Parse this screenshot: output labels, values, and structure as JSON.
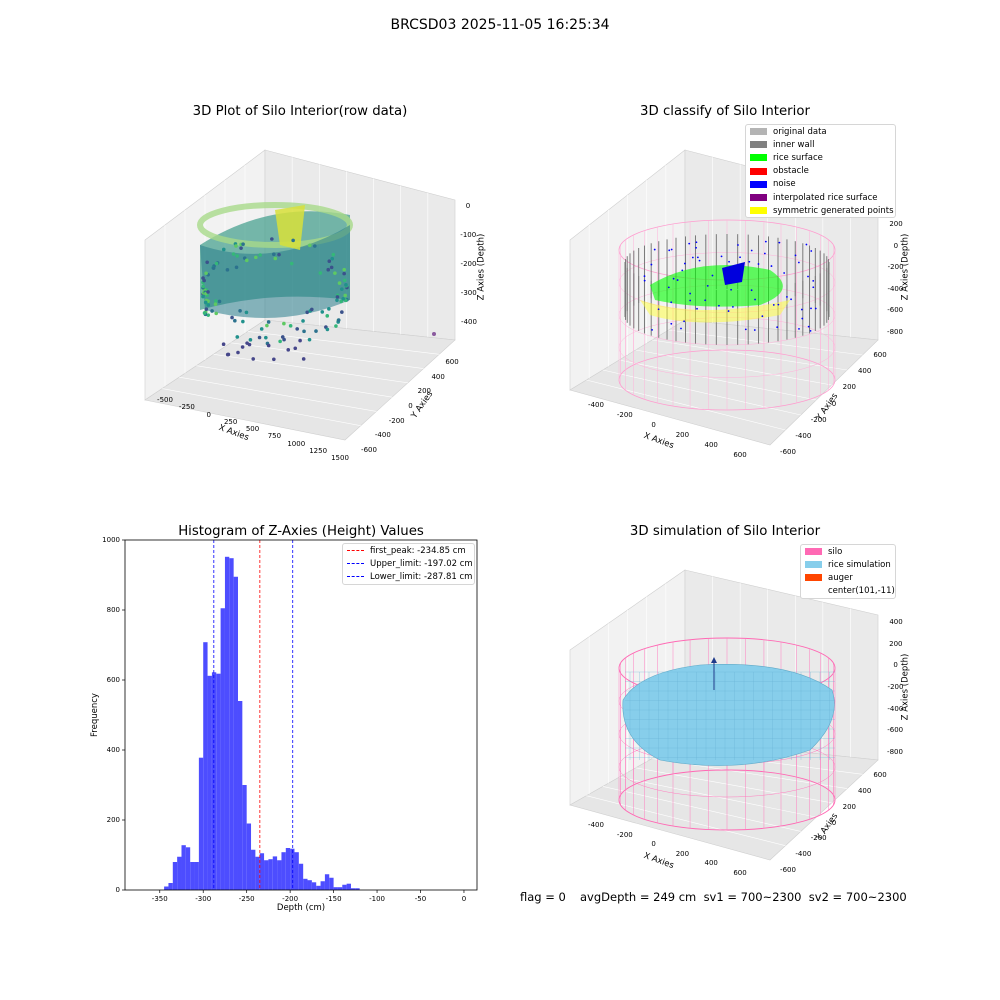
{
  "figure_title": "BRCSD03 2025-11-05 16:25:34",
  "panel1": {
    "title": "3D Plot of Silo Interior(row data)",
    "xlabel": "X Axies",
    "ylabel": "Y Axies",
    "zlabel": "Z Axies (Depth)",
    "xticks": [
      "-500",
      "-250",
      "0",
      "250",
      "500",
      "750",
      "1000",
      "1250",
      "1500"
    ],
    "yticks": [
      "600",
      "400",
      "200",
      "0",
      "-200",
      "-400",
      "-600"
    ],
    "zticks": [
      "0",
      "-100",
      "-200",
      "-300",
      "-400"
    ]
  },
  "panel2": {
    "title": "3D classify of Silo Interior",
    "xlabel": "X Axies",
    "ylabel": "Y Axies",
    "zlabel": "Z Axies (Depth)",
    "xticks": [
      "-400",
      "-200",
      "0",
      "200",
      "400",
      "600"
    ],
    "yticks": [
      "600",
      "400",
      "200",
      "0",
      "-200",
      "-400",
      "-600"
    ],
    "zticks": [
      "200",
      "0",
      "-200",
      "-400",
      "-600",
      "-800"
    ],
    "legend": [
      {
        "label": "original data",
        "color": "#b4b4b4"
      },
      {
        "label": "inner wall",
        "color": "#808080"
      },
      {
        "label": "rice surface",
        "color": "#00ff00"
      },
      {
        "label": "obstacle",
        "color": "#ff0000"
      },
      {
        "label": "noise",
        "color": "#0000ff"
      },
      {
        "label": "interpolated rice surface",
        "color": "#800080"
      },
      {
        "label": "symmetric generated points",
        "color": "#ffff00"
      }
    ]
  },
  "panel4": {
    "title": "3D simulation of Silo Interior",
    "xlabel": "X Axies",
    "ylabel": "Y Axies",
    "zlabel": "Z Axies (Depth)",
    "xticks": [
      "-400",
      "-200",
      "0",
      "200",
      "400",
      "600"
    ],
    "yticks": [
      "600",
      "400",
      "200",
      "0",
      "-200",
      "-400",
      "-600"
    ],
    "zticks": [
      "400",
      "200",
      "0",
      "-200",
      "-400",
      "-600",
      "-800"
    ],
    "legend": [
      {
        "label": "silo",
        "color": "#ff69b4"
      },
      {
        "label": "rice simulation",
        "color": "#87ceeb"
      },
      {
        "label": "auger",
        "color": "#ff4500"
      },
      {
        "label": "center(101,-11)",
        "color": ""
      }
    ]
  },
  "footer": {
    "flag": "flag = 0",
    "avg": "avgDepth = 249 cm  sv1 = 700~2300  sv2 = 700~2300"
  },
  "chart_data": {
    "type": "bar",
    "title": "Histogram of Z-Axies (Height) Values",
    "xlabel": "Depth (cm)",
    "ylabel": "Frequency",
    "xlim": [
      -390,
      15
    ],
    "ylim": [
      0,
      1000
    ],
    "xticks": [
      -350,
      -300,
      -250,
      -200,
      -150,
      -100,
      -50,
      0
    ],
    "yticks": [
      0,
      200,
      400,
      600,
      800,
      1000
    ],
    "bar_color": "#4d4dff",
    "bin_width": 5,
    "bins": [
      {
        "x": -345,
        "y": 10
      },
      {
        "x": -340,
        "y": 20
      },
      {
        "x": -335,
        "y": 80
      },
      {
        "x": -330,
        "y": 95
      },
      {
        "x": -325,
        "y": 128
      },
      {
        "x": -320,
        "y": 122
      },
      {
        "x": -315,
        "y": 80
      },
      {
        "x": -310,
        "y": 80
      },
      {
        "x": -305,
        "y": 378
      },
      {
        "x": -300,
        "y": 708
      },
      {
        "x": -295,
        "y": 612
      },
      {
        "x": -290,
        "y": 622
      },
      {
        "x": -285,
        "y": 618
      },
      {
        "x": -280,
        "y": 805
      },
      {
        "x": -275,
        "y": 952
      },
      {
        "x": -270,
        "y": 948
      },
      {
        "x": -265,
        "y": 895
      },
      {
        "x": -260,
        "y": 540
      },
      {
        "x": -255,
        "y": 300
      },
      {
        "x": -250,
        "y": 190
      },
      {
        "x": -245,
        "y": 115
      },
      {
        "x": -240,
        "y": 95
      },
      {
        "x": -235,
        "y": 105
      },
      {
        "x": -230,
        "y": 85
      },
      {
        "x": -225,
        "y": 88
      },
      {
        "x": -220,
        "y": 96
      },
      {
        "x": -215,
        "y": 85
      },
      {
        "x": -210,
        "y": 108
      },
      {
        "x": -205,
        "y": 120
      },
      {
        "x": -200,
        "y": 118
      },
      {
        "x": -195,
        "y": 108
      },
      {
        "x": -190,
        "y": 75
      },
      {
        "x": -185,
        "y": 32
      },
      {
        "x": -180,
        "y": 28
      },
      {
        "x": -175,
        "y": 22
      },
      {
        "x": -170,
        "y": 12
      },
      {
        "x": -165,
        "y": 25
      },
      {
        "x": -160,
        "y": 45
      },
      {
        "x": -155,
        "y": 35
      },
      {
        "x": -150,
        "y": 8
      },
      {
        "x": -145,
        "y": 8
      },
      {
        "x": -140,
        "y": 15
      },
      {
        "x": -135,
        "y": 18
      },
      {
        "x": -130,
        "y": 5
      },
      {
        "x": -125,
        "y": 5
      }
    ],
    "vlines": [
      {
        "label": "first_peak: -234.85 cm",
        "x": -234.85,
        "color": "#ff0000"
      },
      {
        "label": "Upper_limit: -197.02 cm",
        "x": -197.02,
        "color": "#0000ff"
      },
      {
        "label": "Lower_limit: -287.81 cm",
        "x": -287.81,
        "color": "#0000ff"
      }
    ],
    "legend_position": "top-right"
  }
}
